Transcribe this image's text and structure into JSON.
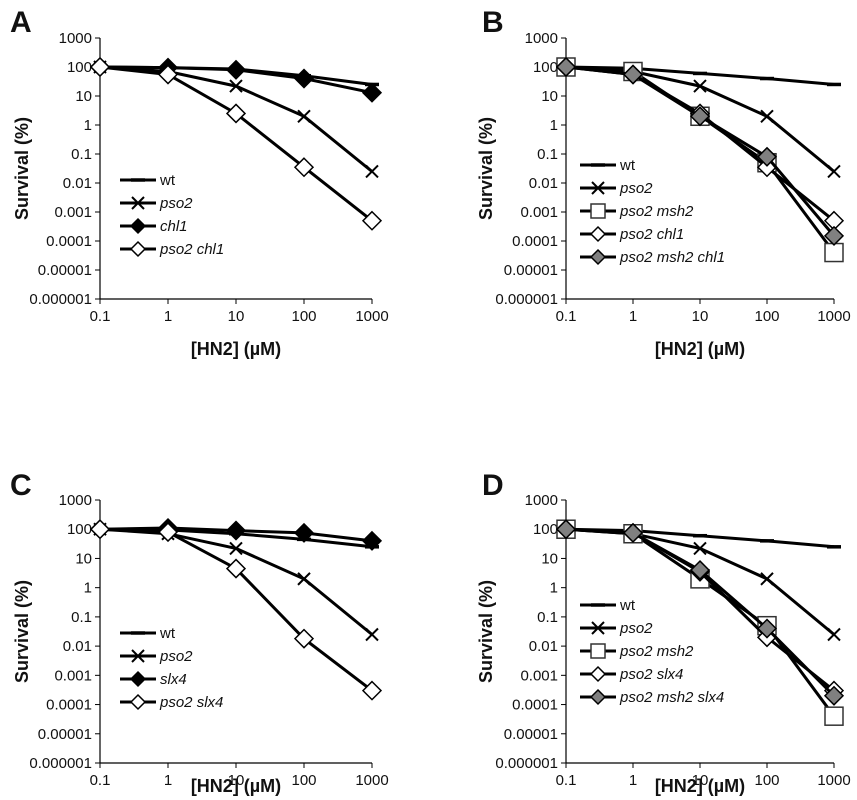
{
  "chart_data": [
    {
      "panel": "A",
      "type": "line",
      "xlabel": "[HN2] (µM)",
      "ylabel": "Survival (%)",
      "x_scale": "log",
      "y_scale": "log",
      "xlim": [
        0.1,
        1000
      ],
      "ylim": [
        1e-06,
        1000
      ],
      "x_ticks": [
        "0.1",
        "1",
        "10",
        "100",
        "1000"
      ],
      "y_ticks": [
        "0.000001",
        "0.00001",
        "0.0001",
        "0.001",
        "0.01",
        "0.1",
        "1",
        "10",
        "100",
        "1000"
      ],
      "legend_position": "bottom-left",
      "grid": false,
      "series": [
        {
          "name": "wt",
          "marker": "dash",
          "color": "#000000",
          "x": [
            0.1,
            1,
            10,
            100,
            1000
          ],
          "y": [
            100,
            95,
            85,
            50,
            25
          ]
        },
        {
          "name": "pso2",
          "marker": "x",
          "color": "#000000",
          "x": [
            0.1,
            1,
            10,
            100,
            1000
          ],
          "y": [
            100,
            70,
            22,
            2,
            0.025
          ]
        },
        {
          "name": "chl1",
          "marker": "diamond-filled",
          "color": "#000000",
          "x": [
            0.1,
            1,
            10,
            100,
            1000
          ],
          "y": [
            100,
            95,
            80,
            40,
            13
          ]
        },
        {
          "name": "pso2 chl1",
          "marker": "diamond-open",
          "color": "#000000",
          "x": [
            0.1,
            1,
            10,
            100,
            1000
          ],
          "y": [
            100,
            55,
            2.5,
            0.035,
            0.0005
          ]
        }
      ]
    },
    {
      "panel": "B",
      "type": "line",
      "xlabel": "[HN2] (µM)",
      "ylabel": "Survival (%)",
      "x_scale": "log",
      "y_scale": "log",
      "xlim": [
        0.1,
        1000
      ],
      "ylim": [
        1e-06,
        1000
      ],
      "x_ticks": [
        "0.1",
        "1",
        "10",
        "100",
        "1000"
      ],
      "y_ticks": [
        "0.000001",
        "0.00001",
        "0.0001",
        "0.001",
        "0.01",
        "0.1",
        "1",
        "10",
        "100",
        "1000"
      ],
      "legend_position": "bottom-left",
      "grid": false,
      "series": [
        {
          "name": "wt",
          "marker": "dash",
          "color": "#000000",
          "x": [
            0.1,
            1,
            10,
            100,
            1000
          ],
          "y": [
            100,
            90,
            60,
            40,
            25
          ]
        },
        {
          "name": "pso2",
          "marker": "x",
          "color": "#000000",
          "x": [
            0.1,
            1,
            10,
            100,
            1000
          ],
          "y": [
            100,
            70,
            22,
            2,
            0.025
          ]
        },
        {
          "name": "pso2 msh2",
          "marker": "square-open",
          "color": "#000000",
          "x": [
            0.1,
            1,
            10,
            100,
            1000
          ],
          "y": [
            100,
            70,
            2,
            0.05,
            4e-05
          ]
        },
        {
          "name": "pso2 chl1",
          "marker": "diamond-open",
          "color": "#000000",
          "x": [
            0.1,
            1,
            10,
            100,
            1000
          ],
          "y": [
            100,
            55,
            2.5,
            0.035,
            0.0005
          ]
        },
        {
          "name": "pso2 msh2 chl1",
          "marker": "diamond-gray",
          "color": "#808080",
          "x": [
            0.1,
            1,
            10,
            100,
            1000
          ],
          "y": [
            100,
            55,
            2,
            0.08,
            0.00015
          ]
        }
      ]
    },
    {
      "panel": "C",
      "type": "line",
      "xlabel": "[HN2] (µM)",
      "ylabel": "Survival (%)",
      "x_scale": "log",
      "y_scale": "log",
      "xlim": [
        0.1,
        1000
      ],
      "ylim": [
        1e-06,
        1000
      ],
      "x_ticks": [
        "0.1",
        "1",
        "10",
        "100",
        "1000"
      ],
      "y_ticks": [
        "0.000001",
        "0.00001",
        "0.0001",
        "0.001",
        "0.01",
        "0.1",
        "1",
        "10",
        "100",
        "1000"
      ],
      "legend_position": "bottom-left",
      "grid": false,
      "series": [
        {
          "name": "wt",
          "marker": "dash",
          "color": "#000000",
          "x": [
            0.1,
            1,
            10,
            100,
            1000
          ],
          "y": [
            100,
            95,
            70,
            45,
            25
          ]
        },
        {
          "name": "pso2",
          "marker": "x",
          "color": "#000000",
          "x": [
            0.1,
            1,
            10,
            100,
            1000
          ],
          "y": [
            100,
            70,
            22,
            2,
            0.025
          ]
        },
        {
          "name": "slx4",
          "marker": "diamond-filled",
          "color": "#000000",
          "x": [
            0.1,
            1,
            10,
            100,
            1000
          ],
          "y": [
            100,
            110,
            90,
            75,
            40
          ]
        },
        {
          "name": "pso2 slx4",
          "marker": "diamond-open",
          "color": "#000000",
          "x": [
            0.1,
            1,
            10,
            100,
            1000
          ],
          "y": [
            100,
            80,
            4.5,
            0.018,
            0.0003
          ]
        }
      ]
    },
    {
      "panel": "D",
      "type": "line",
      "xlabel": "[HN2] (µM)",
      "ylabel": "Survival (%)",
      "x_scale": "log",
      "y_scale": "log",
      "xlim": [
        0.1,
        1000
      ],
      "ylim": [
        1e-06,
        1000
      ],
      "x_ticks": [
        "0.1",
        "1",
        "10",
        "100",
        "1000"
      ],
      "y_ticks": [
        "0.000001",
        "0.00001",
        "0.0001",
        "0.001",
        "0.01",
        "0.1",
        "1",
        "10",
        "100",
        "1000"
      ],
      "legend_position": "bottom-left",
      "grid": false,
      "series": [
        {
          "name": "wt",
          "marker": "dash",
          "color": "#000000",
          "x": [
            0.1,
            1,
            10,
            100,
            1000
          ],
          "y": [
            100,
            90,
            60,
            40,
            25
          ]
        },
        {
          "name": "pso2",
          "marker": "x",
          "color": "#000000",
          "x": [
            0.1,
            1,
            10,
            100,
            1000
          ],
          "y": [
            100,
            70,
            22,
            2,
            0.025
          ]
        },
        {
          "name": "pso2 msh2",
          "marker": "square-open",
          "color": "#000000",
          "x": [
            0.1,
            1,
            10,
            100,
            1000
          ],
          "y": [
            100,
            70,
            2,
            0.05,
            4e-05
          ]
        },
        {
          "name": "pso2 slx4",
          "marker": "diamond-open",
          "color": "#000000",
          "x": [
            0.1,
            1,
            10,
            100,
            1000
          ],
          "y": [
            100,
            75,
            3.5,
            0.02,
            0.0003
          ]
        },
        {
          "name": "pso2 msh2 slx4",
          "marker": "diamond-gray",
          "color": "#808080",
          "x": [
            0.1,
            1,
            10,
            100,
            1000
          ],
          "y": [
            100,
            75,
            4,
            0.04,
            0.0002
          ]
        }
      ]
    }
  ]
}
